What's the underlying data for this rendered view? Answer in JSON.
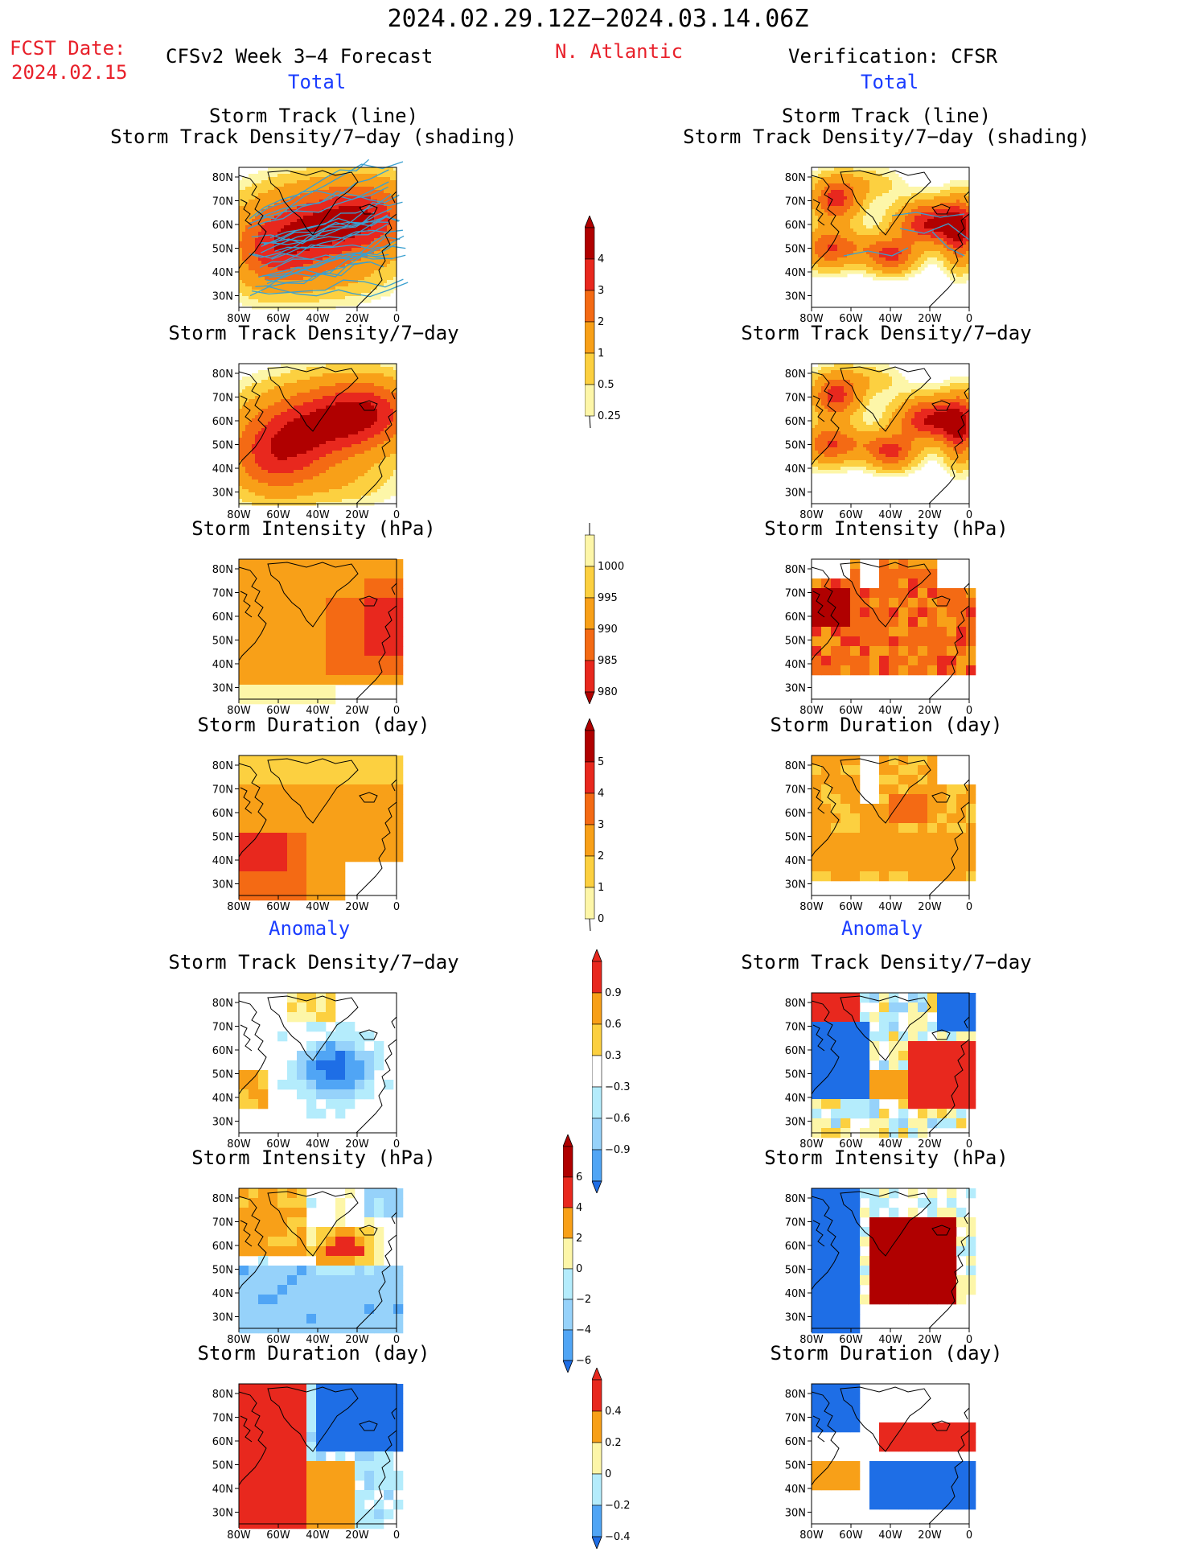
{
  "header": {
    "date_range": "2024.02.29.12Z−2024.03.14.06Z",
    "fcst_label": "FCST Date:",
    "fcst_date": "2024.02.15",
    "model": "CFSv2 Week 3−4 Forecast",
    "region": "N. Atlantic",
    "verification": "Verification: CFSR",
    "total_left": "Total",
    "total_right": "Total",
    "anomaly_left": "Anomaly",
    "anomaly_right": "Anomaly"
  },
  "titles": {
    "track_line": "Storm Track (line)",
    "track_shading": "Storm Track Density/7−day (shading)",
    "density": "Storm Track Density/7−day",
    "intensity": "Storm Intensity (hPa)",
    "duration": "Storm Duration (day)"
  },
  "axes": {
    "lat_ticks": [
      "80N",
      "70N",
      "60N",
      "50N",
      "40N",
      "30N"
    ],
    "lon_ticks": [
      "80W",
      "60W",
      "40W",
      "20W",
      "0"
    ]
  },
  "colorbars": {
    "density_total": [
      "4",
      "3",
      "2",
      "1",
      "0.5",
      "0.25"
    ],
    "intensity_total": [
      "1000",
      "995",
      "990",
      "985",
      "980"
    ],
    "duration_total": [
      "5",
      "4",
      "3",
      "2",
      "1",
      "0"
    ],
    "density_anom": [
      "0.9",
      "0.6",
      "0.3",
      "−0.3",
      "−0.6",
      "−0.9"
    ],
    "intensity_anom": [
      "6",
      "4",
      "2",
      "0",
      "−2",
      "−4",
      "−6"
    ],
    "duration_anom": [
      "0.4",
      "0.2",
      "0",
      "−0.2",
      "−0.4"
    ]
  },
  "colors": {
    "dark_red": "#b00000",
    "red": "#e8281e",
    "orange_red": "#f46a14",
    "orange": "#f8a018",
    "light_orange": "#fcd040",
    "pale_yellow": "#fdf6a8",
    "light_blue": "#b4ecfc",
    "blue_light": "#96d2fa",
    "mid_blue": "#50a5f5",
    "blue": "#1e6ee6",
    "track_line": "#3aa0d0"
  }
}
